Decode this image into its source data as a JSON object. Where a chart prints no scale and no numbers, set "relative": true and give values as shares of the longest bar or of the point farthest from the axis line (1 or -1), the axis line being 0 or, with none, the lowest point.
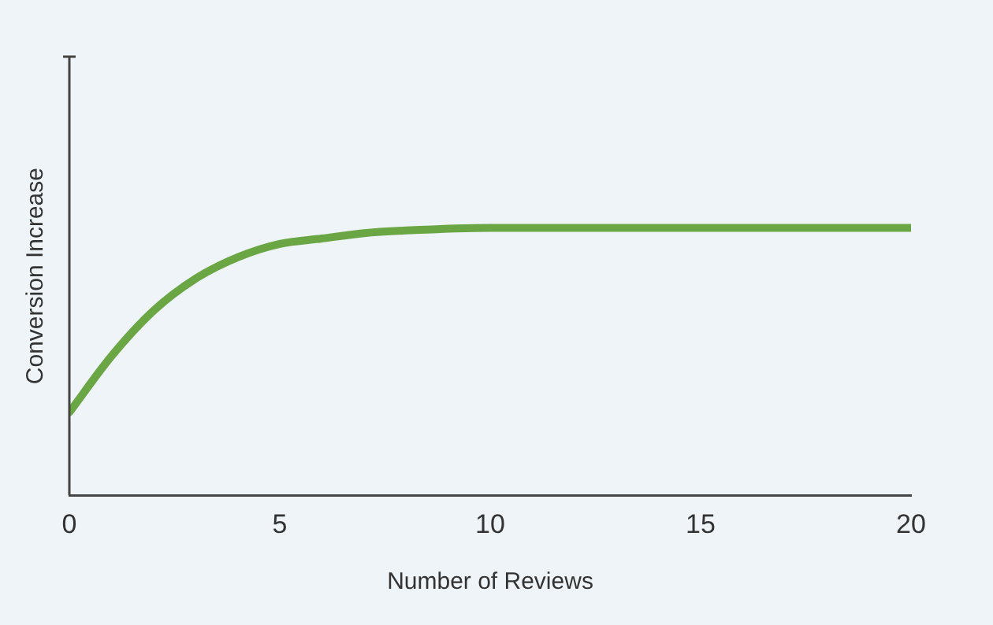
{
  "chart_data": {
    "type": "line",
    "relative": true,
    "xlabel": "Number of Reviews",
    "ylabel": "Conversion Increase",
    "xlim": [
      0,
      20
    ],
    "xticks": [
      0,
      5,
      10,
      15,
      20
    ],
    "grid": false,
    "legend": false,
    "marker": "none",
    "line_style": "solid",
    "series": [
      {
        "color": "#6aa644",
        "x": [
          0,
          1,
          2,
          3,
          4,
          5,
          6,
          7,
          8,
          10,
          12,
          15,
          20
        ],
        "values": [
          0.31,
          0.52,
          0.69,
          0.81,
          0.89,
          0.94,
          0.96,
          0.98,
          0.99,
          1,
          1,
          1,
          1
        ]
      }
    ]
  }
}
